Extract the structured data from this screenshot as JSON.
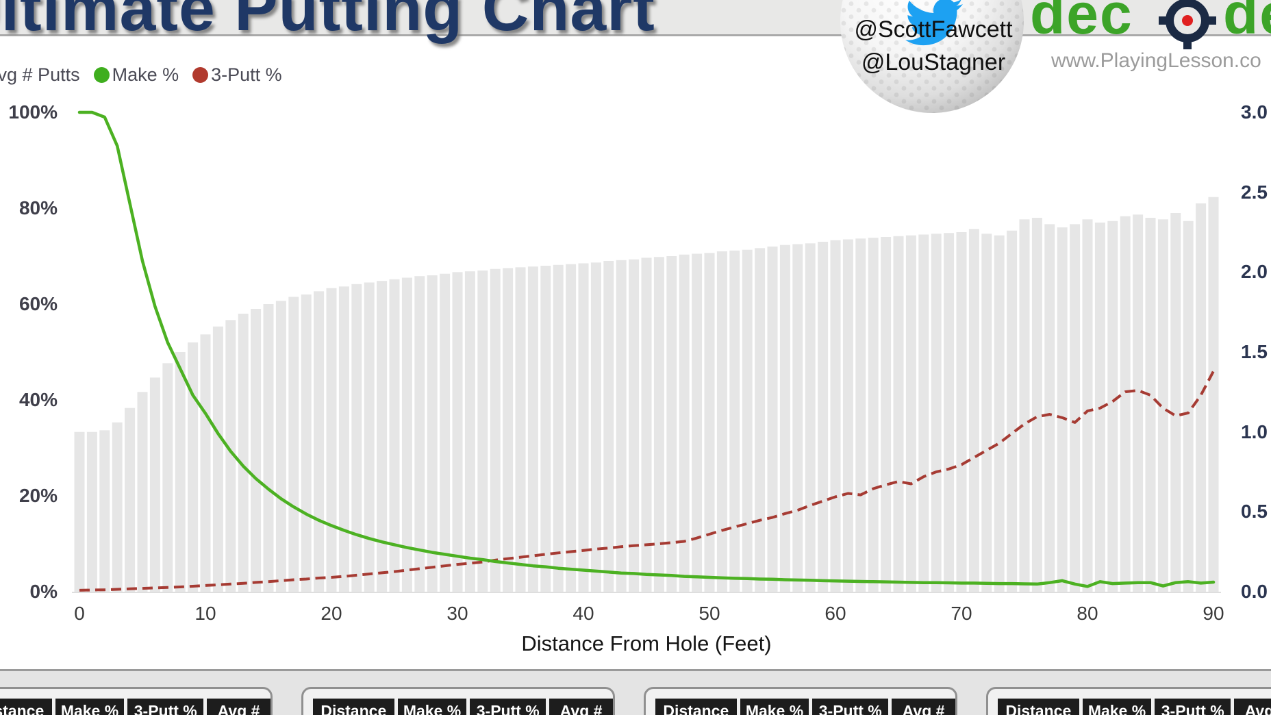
{
  "header": {
    "title": "Ultimate Putting Chart",
    "twitter_handles": [
      "@ScottFawcett",
      "@LouStagner"
    ],
    "logo": {
      "text_before": "dec",
      "text_after": "de",
      "target_ring_color": "#1b2a44",
      "target_dot_color": "#e02020",
      "text_color": "#3ca428"
    },
    "website": "www.PlayingLesson.co"
  },
  "legend": {
    "items": [
      {
        "label": "Avg # Putts",
        "color": "#bfbfbf"
      },
      {
        "label": "Make %",
        "color": "#3fae1e"
      },
      {
        "label": "3-Putt %",
        "color": "#b13a2e"
      }
    ]
  },
  "chart_data": {
    "type": "combo",
    "title": "Ultimate Putting Chart",
    "xlabel": "Distance From Hole (Feet)",
    "x_start": 0,
    "x_step": 1,
    "x_ticks": [
      0,
      10,
      20,
      30,
      40,
      50,
      60,
      70,
      80,
      90
    ],
    "left_axis": {
      "ticks": [
        "0%",
        "20%",
        "40%",
        "60%",
        "80%",
        "100%"
      ],
      "min": 0,
      "max": 100
    },
    "right_axis": {
      "ticks": [
        "0.0",
        "0.5",
        "1.0",
        "1.5",
        "2.0",
        "2.5",
        "3.0"
      ],
      "min": 0,
      "max": 3,
      "grid": false
    },
    "series": [
      {
        "name": "Avg # Putts",
        "type": "bar",
        "axis": "right",
        "color": "#e6e6e6",
        "values": [
          1,
          1,
          1.01,
          1.06,
          1.15,
          1.25,
          1.34,
          1.43,
          1.5,
          1.56,
          1.61,
          1.66,
          1.7,
          1.74,
          1.77,
          1.8,
          1.82,
          1.845,
          1.86,
          1.88,
          1.9,
          1.91,
          1.925,
          1.935,
          1.945,
          1.955,
          1.965,
          1.975,
          1.98,
          1.99,
          2,
          2.005,
          2.01,
          2.02,
          2.025,
          2.03,
          2.035,
          2.04,
          2.045,
          2.05,
          2.055,
          2.06,
          2.07,
          2.075,
          2.08,
          2.09,
          2.095,
          2.1,
          2.11,
          2.115,
          2.12,
          2.13,
          2.135,
          2.14,
          2.15,
          2.16,
          2.17,
          2.175,
          2.18,
          2.19,
          2.2,
          2.205,
          2.21,
          2.215,
          2.22,
          2.225,
          2.23,
          2.235,
          2.24,
          2.245,
          2.25,
          2.27,
          2.24,
          2.23,
          2.26,
          2.33,
          2.34,
          2.3,
          2.28,
          2.3,
          2.33,
          2.31,
          2.32,
          2.35,
          2.36,
          2.34,
          2.33,
          2.37,
          2.32,
          2.43,
          2.47
        ]
      },
      {
        "name": "Make %",
        "type": "line",
        "axis": "left",
        "color": "#4cb122",
        "values": [
          100,
          100,
          99,
          93,
          81,
          69,
          59.5,
          52,
          46.5,
          41,
          37.2,
          33,
          29.3,
          26.2,
          23.6,
          21.4,
          19.4,
          17.7,
          16.2,
          14.9,
          13.8,
          12.8,
          11.9,
          11.1,
          10.4,
          9.8,
          9.2,
          8.7,
          8.2,
          7.8,
          7.4,
          7,
          6.7,
          6.3,
          6,
          5.7,
          5.4,
          5.2,
          4.9,
          4.7,
          4.5,
          4.3,
          4.1,
          3.9,
          3.8,
          3.6,
          3.5,
          3.4,
          3.2,
          3.1,
          3,
          2.9,
          2.8,
          2.75,
          2.65,
          2.6,
          2.5,
          2.45,
          2.4,
          2.3,
          2.25,
          2.2,
          2.15,
          2.1,
          2.05,
          2,
          1.95,
          1.9,
          1.9,
          1.85,
          1.8,
          1.8,
          1.75,
          1.7,
          1.7,
          1.65,
          1.6,
          1.9,
          2.3,
          1.6,
          1.1,
          2.1,
          1.7,
          1.8,
          1.9,
          1.9,
          1.2,
          1.9,
          2.1,
          1.8,
          2
        ]
      },
      {
        "name": "3-Putt %",
        "type": "line",
        "dash": true,
        "axis": "left",
        "color": "#a63b33",
        "values": [
          0.3,
          0.35,
          0.4,
          0.5,
          0.6,
          0.7,
          0.8,
          0.9,
          1,
          1.15,
          1.3,
          1.45,
          1.6,
          1.75,
          1.95,
          2.1,
          2.3,
          2.5,
          2.65,
          2.85,
          3,
          3.2,
          3.45,
          3.7,
          3.95,
          4.2,
          4.5,
          4.8,
          5.1,
          5.4,
          5.7,
          5.95,
          6.2,
          6.6,
          6.9,
          7.2,
          7.5,
          7.8,
          8.1,
          8.35,
          8.6,
          8.9,
          9.1,
          9.4,
          9.6,
          9.8,
          10,
          10.25,
          10.5,
          11.2,
          12,
          12.8,
          13.5,
          14.2,
          14.9,
          15.5,
          16.3,
          17,
          18,
          18.9,
          19.8,
          20.5,
          20.2,
          21.5,
          22.3,
          23,
          22.5,
          24,
          25,
          25.6,
          26.5,
          28,
          29.5,
          31,
          33,
          35,
          36.5,
          37,
          36.3,
          35.3,
          37.7,
          38.3,
          39.7,
          41.7,
          42,
          41,
          38.3,
          36.7,
          37.3,
          41,
          46
        ]
      }
    ]
  },
  "tables": {
    "columns": [
      "Distance",
      "Make %",
      "3-Putt %",
      "Avg #"
    ],
    "cards": 4
  }
}
